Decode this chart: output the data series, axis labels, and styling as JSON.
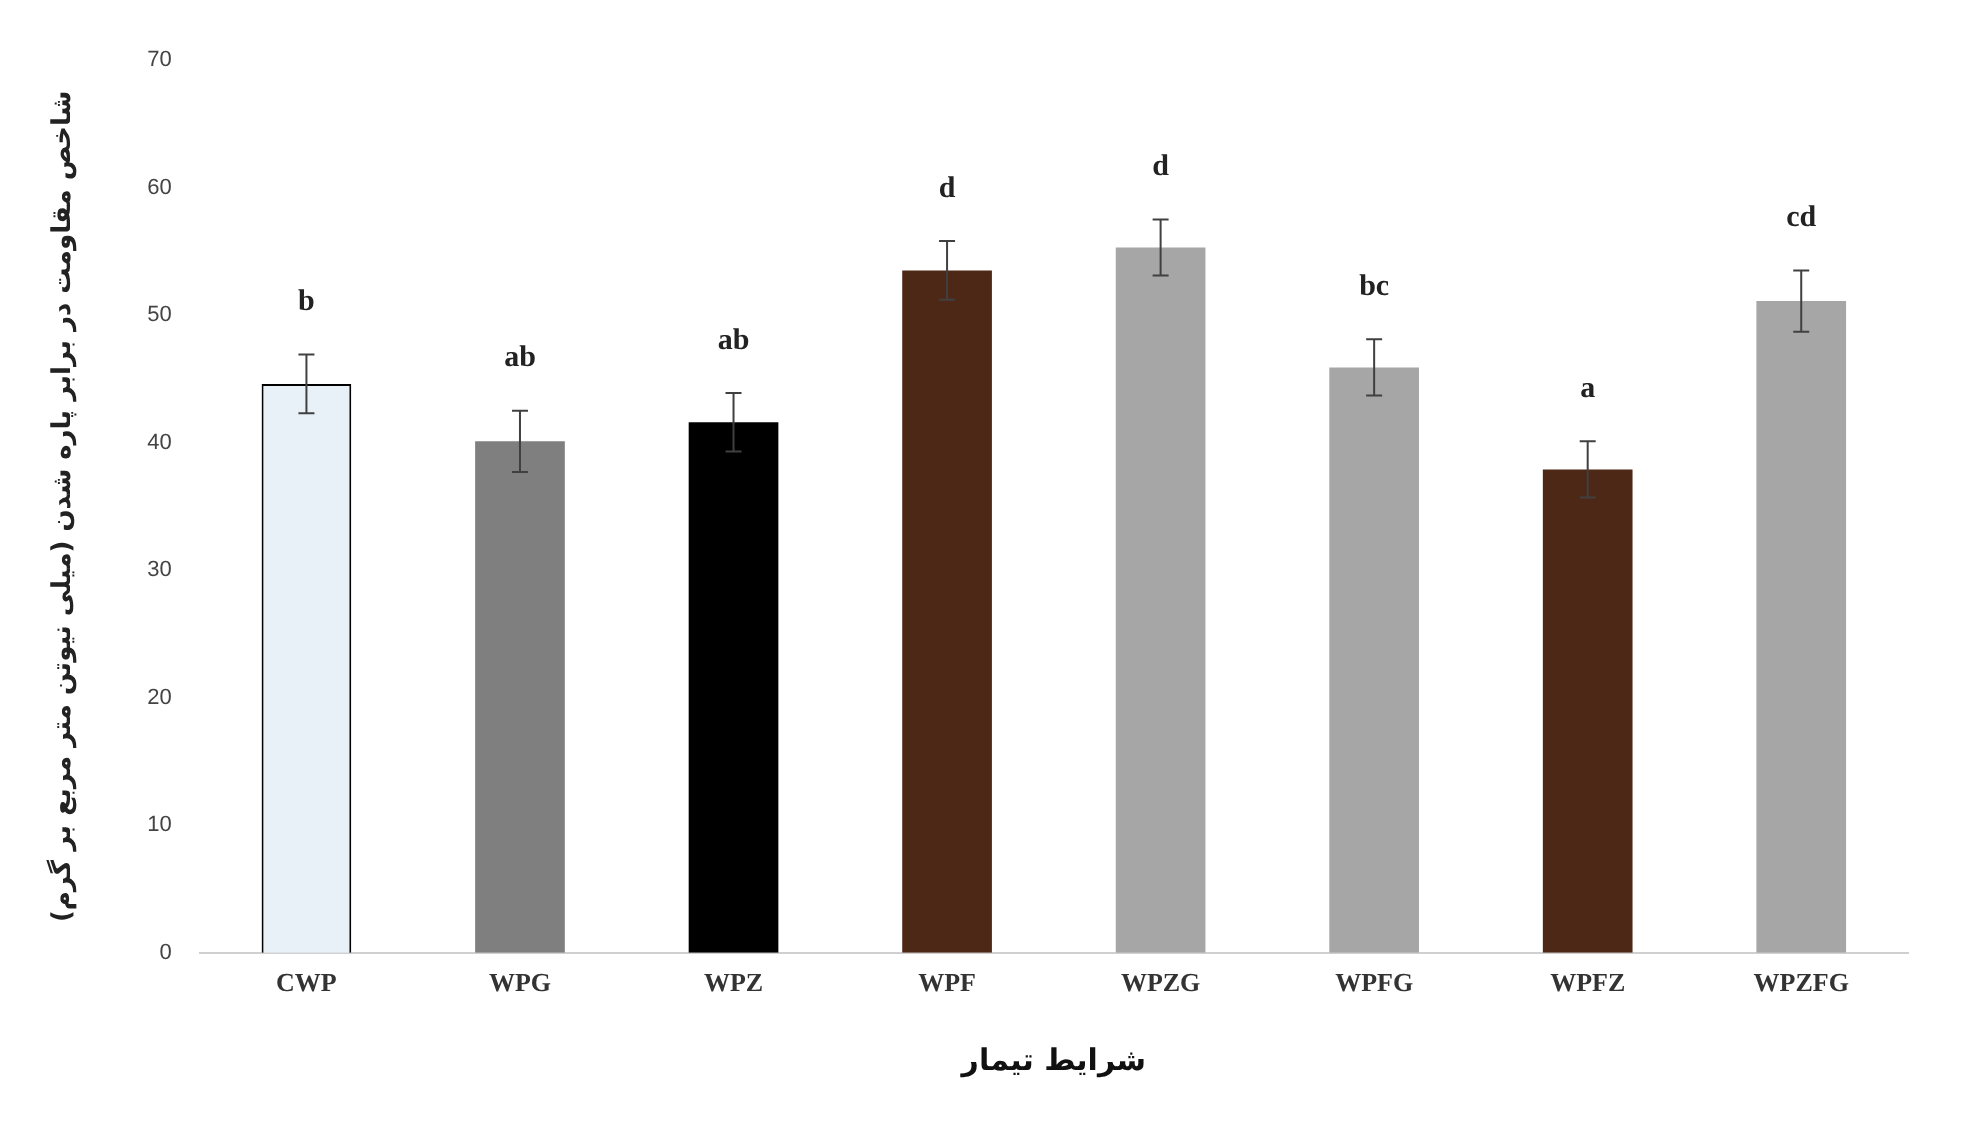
{
  "chart_data": {
    "type": "bar",
    "xlabel": "شرایط تیمار",
    "ylabel": "شاخص مقاومت در برابر پاره شدن (میلی نیوتن متر مربع بر گرم)",
    "categories": [
      "CWP",
      "WPG",
      "WPZ",
      "WPF",
      "WPZG",
      "WPFG",
      "WPFZ",
      "WPZFG"
    ],
    "values": [
      44.6,
      40.1,
      41.6,
      53.5,
      55.3,
      45.9,
      37.9,
      51.1
    ],
    "errors": [
      2.3,
      2.4,
      2.3,
      2.3,
      2.2,
      2.2,
      2.2,
      2.4
    ],
    "colors": [
      "#e8f0f8",
      "#7f7f7f",
      "#000000",
      "#4d2817",
      "#a6a6a6",
      "#a6a6a6",
      "#4d2817",
      "#a6a6a6"
    ],
    "ylim": [
      0,
      70
    ],
    "yticks": [
      0,
      10,
      20,
      30,
      40,
      50,
      60,
      70
    ],
    "grid": false,
    "legend": false,
    "annotations": [
      "b",
      "ab",
      "ab",
      "d",
      "d",
      "bc",
      "a",
      "cd"
    ]
  }
}
